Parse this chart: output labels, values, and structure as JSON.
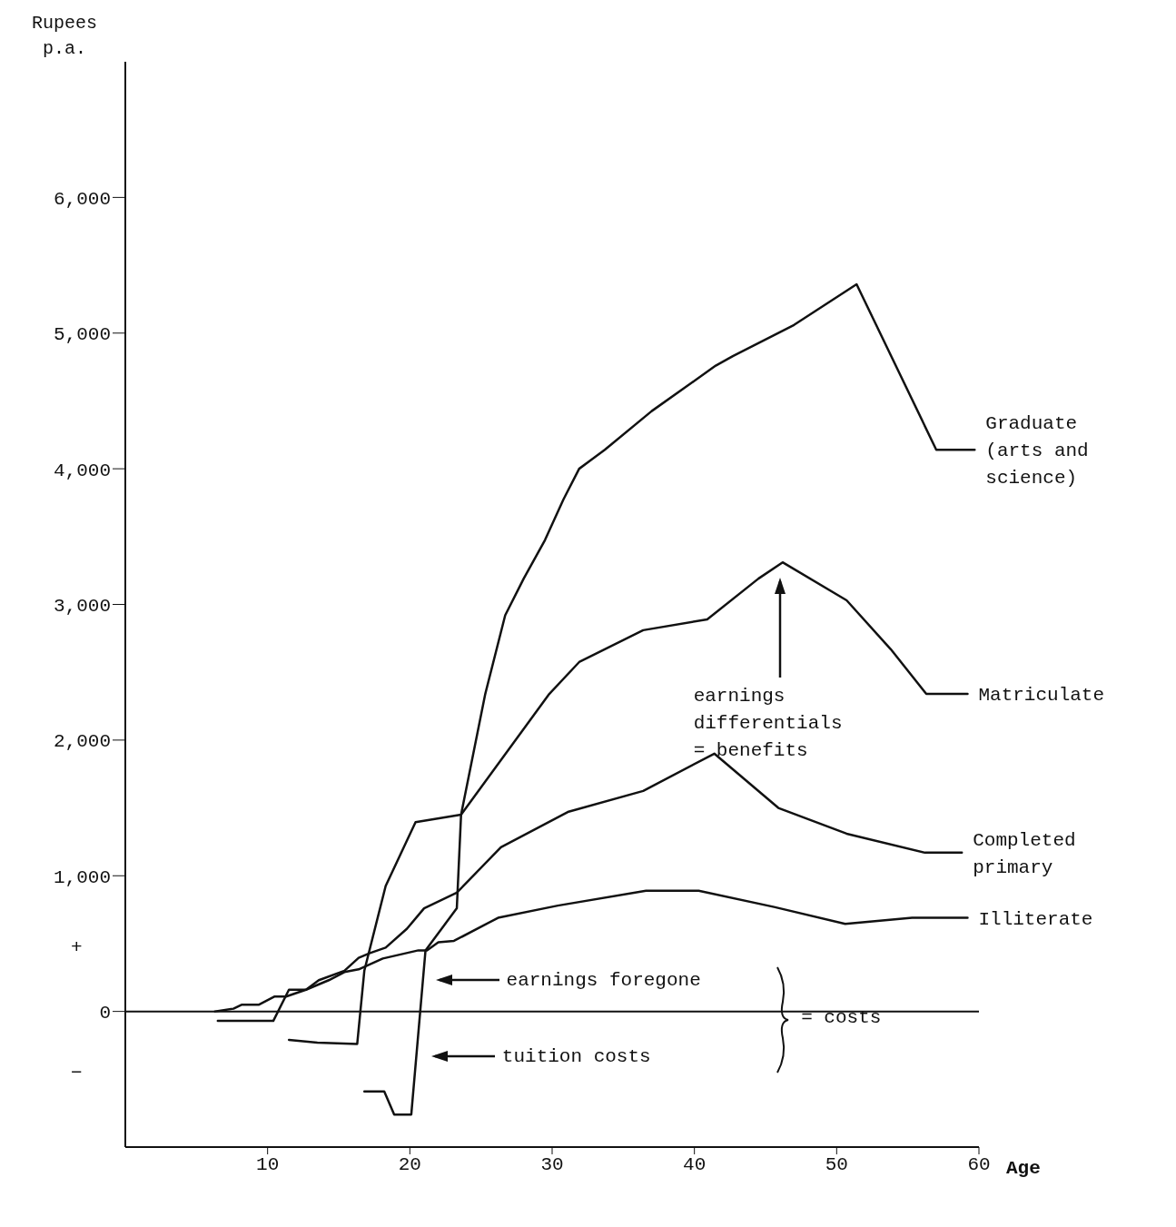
{
  "chart_data": {
    "type": "line",
    "xlabel": "Age",
    "ylabel": "Rupees p.a.",
    "xlim": [
      0,
      60
    ],
    "xticks": [
      10,
      20,
      30,
      40,
      50,
      60
    ],
    "ylim": [
      -1000,
      7000
    ],
    "yticks": [
      {
        "value": 0,
        "label": "0"
      },
      {
        "value": 1000,
        "label": "1,000"
      },
      {
        "value": 2000,
        "label": "2,000"
      },
      {
        "value": 3000,
        "label": "3,000"
      },
      {
        "value": 4000,
        "label": "4,000"
      },
      {
        "value": 5000,
        "label": "5,000"
      },
      {
        "value": 6000,
        "label": "6,000"
      }
    ],
    "marker": "none",
    "line_style": "solid",
    "series": [
      {
        "name": "Graduate (arts and science)",
        "color": "#111111",
        "x": [
          16.8,
          18.2,
          18.9,
          20.1,
          21.1,
          23.3,
          23.6,
          25.3,
          26.7,
          28,
          29.5,
          30.8,
          31.9,
          33.7,
          37,
          41.5,
          42.7,
          47,
          51.4,
          57,
          59.7
        ],
        "values": [
          -590,
          -590,
          -760,
          -760,
          450,
          760,
          1450,
          2340,
          2920,
          3190,
          3475,
          3775,
          4000,
          4140,
          4425,
          4760,
          4830,
          5060,
          5360,
          4140,
          4140
        ]
      },
      {
        "name": "Matriculate",
        "color": "#111111",
        "x": [
          11.5,
          13.5,
          16.3,
          16.8,
          18.3,
          20.4,
          23.6,
          29.8,
          31.9,
          36.4,
          40.9,
          44.5,
          46.2,
          50.7,
          53.8,
          56.3,
          59.2
        ],
        "values": [
          -210,
          -230,
          -240,
          300,
          925,
          1395,
          1450,
          2340,
          2575,
          2810,
          2890,
          3190,
          3310,
          3030,
          2670,
          2340,
          2340
        ]
      },
      {
        "name": "Completed primary",
        "color": "#111111",
        "x": [
          6.5,
          10.4,
          11.5,
          12.7,
          13.6,
          15.4,
          16.4,
          17.2,
          18.3,
          19.8,
          21,
          23.3,
          26.4,
          31.1,
          36.4,
          41.4,
          45.9,
          50.7,
          56.2,
          58.8
        ],
        "values": [
          -70,
          -70,
          160,
          160,
          230,
          300,
          395,
          430,
          470,
          610,
          760,
          875,
          1210,
          1470,
          1625,
          1900,
          1500,
          1310,
          1170,
          1170
        ]
      },
      {
        "name": "Illiterate",
        "color": "#111111",
        "x": [
          6.3,
          7.6,
          8.2,
          9.4,
          10.5,
          11.3,
          12.7,
          14.3,
          15.4,
          16.4,
          18.1,
          20.6,
          21.2,
          22,
          23.1,
          26.2,
          30.4,
          36.6,
          40.3,
          45.6,
          50.6,
          55.3,
          59.2
        ],
        "values": [
          0,
          20,
          50,
          50,
          110,
          110,
          160,
          230,
          290,
          310,
          390,
          450,
          450,
          510,
          520,
          690,
          780,
          890,
          890,
          770,
          645,
          690,
          690
        ]
      }
    ],
    "ref_lines": [
      {
        "axis": "y",
        "value": 0,
        "color": "#111111"
      }
    ],
    "annotations": [
      "earnings differentials = benefits",
      "earnings foregone",
      "tuition costs",
      "= costs",
      "+",
      "−"
    ]
  }
}
